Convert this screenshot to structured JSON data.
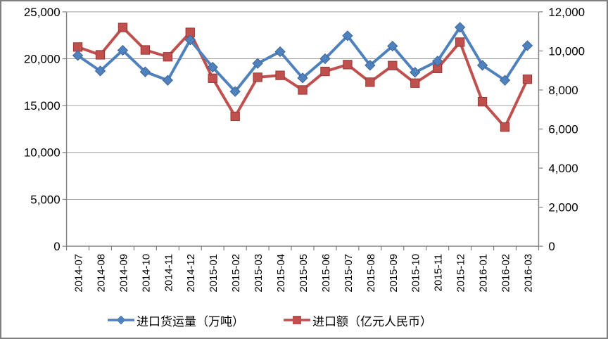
{
  "chart_data": {
    "type": "line",
    "title": "",
    "legend_position": "bottom",
    "categories": [
      "2014-07",
      "2014-08",
      "2014-09",
      "2014-10",
      "2014-11",
      "2014-12",
      "2015-01",
      "2015-02",
      "2015-03",
      "2015-04",
      "2015-05",
      "2015-06",
      "2015-07",
      "2015-08",
      "2015-09",
      "2015-10",
      "2015-11",
      "2015-12",
      "2016-01",
      "2016-02",
      "2016-03"
    ],
    "series": [
      {
        "name": "进口货运量（万吨）",
        "axis": "left",
        "marker": "diamond",
        "color": "#4F81BD",
        "marker_border": "#3D6699",
        "values": [
          20350,
          18700,
          20900,
          18600,
          17700,
          22000,
          19100,
          16500,
          19500,
          20750,
          17950,
          20000,
          22450,
          19300,
          21350,
          18550,
          19750,
          23350,
          19300,
          17700,
          21400
        ]
      },
      {
        "name": "进口额（亿元人民币）",
        "axis": "right",
        "marker": "square",
        "color": "#C0504D",
        "marker_border": "#953735",
        "values": [
          10200,
          9800,
          11200,
          10050,
          9700,
          10950,
          8600,
          6650,
          8650,
          8750,
          8000,
          8950,
          9300,
          8400,
          9250,
          8350,
          9100,
          10450,
          7400,
          6100,
          8550
        ]
      }
    ],
    "left_axis": {
      "min": 0,
      "max": 25000,
      "step": 5000,
      "tick_labels": [
        "0",
        "5,000",
        "10,000",
        "15,000",
        "20,000",
        "25,000"
      ]
    },
    "right_axis": {
      "min": 0,
      "max": 12000,
      "step": 2000,
      "tick_labels": [
        "0",
        "2,000",
        "4,000",
        "6,000",
        "8,000",
        "10,000",
        "12,000"
      ]
    },
    "grid": "horizontal",
    "colors": {
      "background": "#FFFFFF",
      "gridline": "#A0A0A0",
      "axis": "#808080",
      "text": "#000000",
      "frame_border": "#808080"
    }
  }
}
